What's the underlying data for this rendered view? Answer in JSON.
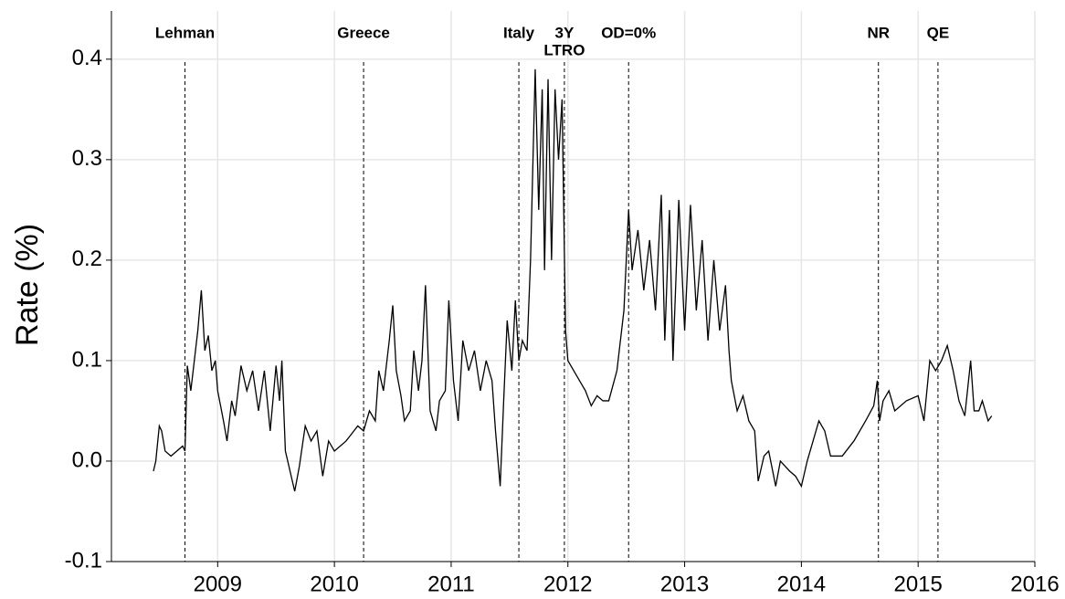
{
  "chart_data": {
    "type": "line",
    "y_label": "Rate (%)",
    "x": [
      2008.45,
      2008.47,
      2008.5,
      2008.52,
      2008.55,
      2008.6,
      2008.65,
      2008.7,
      2008.72,
      2008.74,
      2008.77,
      2008.8,
      2008.83,
      2008.86,
      2008.89,
      2008.92,
      2008.95,
      2008.98,
      2009.0,
      2009.05,
      2009.08,
      2009.12,
      2009.15,
      2009.2,
      2009.25,
      2009.3,
      2009.35,
      2009.4,
      2009.45,
      2009.5,
      2009.53,
      2009.55,
      2009.58,
      2009.62,
      2009.66,
      2009.7,
      2009.75,
      2009.8,
      2009.85,
      2009.9,
      2009.95,
      2010.0,
      2010.1,
      2010.2,
      2010.25,
      2010.3,
      2010.35,
      2010.38,
      2010.42,
      2010.47,
      2010.5,
      2010.53,
      2010.57,
      2010.6,
      2010.65,
      2010.68,
      2010.72,
      2010.75,
      2010.78,
      2010.82,
      2010.87,
      2010.9,
      2010.95,
      2010.98,
      2011.02,
      2011.06,
      2011.1,
      2011.15,
      2011.2,
      2011.25,
      2011.3,
      2011.35,
      2011.38,
      2011.42,
      2011.45,
      2011.48,
      2011.52,
      2011.55,
      2011.58,
      2011.61,
      2011.65,
      2011.68,
      2011.72,
      2011.75,
      2011.78,
      2011.8,
      2011.83,
      2011.86,
      2011.89,
      2011.92,
      2011.95,
      2011.98,
      2012.0,
      2012.05,
      2012.1,
      2012.15,
      2012.2,
      2012.25,
      2012.3,
      2012.35,
      2012.42,
      2012.48,
      2012.52,
      2012.55,
      2012.6,
      2012.65,
      2012.7,
      2012.75,
      2012.8,
      2012.83,
      2012.87,
      2012.9,
      2012.95,
      2013.0,
      2013.05,
      2013.1,
      2013.15,
      2013.2,
      2013.25,
      2013.3,
      2013.35,
      2013.38,
      2013.4,
      2013.45,
      2013.5,
      2013.55,
      2013.6,
      2013.63,
      2013.68,
      2013.72,
      2013.78,
      2013.82,
      2013.9,
      2013.95,
      2014.0,
      2014.05,
      2014.1,
      2014.15,
      2014.2,
      2014.25,
      2014.35,
      2014.45,
      2014.55,
      2014.62,
      2014.65,
      2014.67,
      2014.7,
      2014.75,
      2014.8,
      2014.9,
      2015.0,
      2015.05,
      2015.1,
      2015.15,
      2015.2,
      2015.25,
      2015.3,
      2015.35,
      2015.4,
      2015.45,
      2015.48,
      2015.52,
      2015.55,
      2015.6,
      2015.63
    ],
    "series": [
      {
        "color": "#000000",
        "values": [
          -0.01,
          0.0,
          0.035,
          0.03,
          0.01,
          0.005,
          0.01,
          0.015,
          0.01,
          0.095,
          0.07,
          0.1,
          0.13,
          0.17,
          0.11,
          0.125,
          0.09,
          0.1,
          0.07,
          0.04,
          0.02,
          0.06,
          0.045,
          0.095,
          0.07,
          0.09,
          0.05,
          0.09,
          0.03,
          0.095,
          0.06,
          0.1,
          0.01,
          -0.01,
          -0.03,
          -0.005,
          0.035,
          0.02,
          0.03,
          -0.015,
          0.02,
          0.01,
          0.02,
          0.035,
          0.03,
          0.05,
          0.04,
          0.09,
          0.07,
          0.12,
          0.155,
          0.09,
          0.065,
          0.04,
          0.05,
          0.11,
          0.07,
          0.1,
          0.175,
          0.05,
          0.03,
          0.06,
          0.07,
          0.16,
          0.08,
          0.04,
          0.12,
          0.09,
          0.11,
          0.07,
          0.1,
          0.08,
          0.03,
          -0.025,
          0.06,
          0.14,
          0.09,
          0.16,
          0.1,
          0.12,
          0.11,
          0.2,
          0.39,
          0.25,
          0.37,
          0.19,
          0.38,
          0.2,
          0.37,
          0.3,
          0.36,
          0.13,
          0.1,
          0.09,
          0.08,
          0.07,
          0.055,
          0.065,
          0.06,
          0.06,
          0.09,
          0.15,
          0.25,
          0.19,
          0.23,
          0.17,
          0.22,
          0.15,
          0.265,
          0.12,
          0.25,
          0.1,
          0.26,
          0.13,
          0.255,
          0.15,
          0.22,
          0.12,
          0.2,
          0.13,
          0.175,
          0.11,
          0.08,
          0.05,
          0.065,
          0.04,
          0.03,
          -0.02,
          0.005,
          0.01,
          -0.025,
          0.0,
          -0.01,
          -0.015,
          -0.025,
          0.0,
          0.02,
          0.04,
          0.03,
          0.005,
          0.005,
          0.02,
          0.04,
          0.055,
          0.08,
          0.04,
          0.06,
          0.07,
          0.05,
          0.06,
          0.065,
          0.04,
          0.1,
          0.09,
          0.1,
          0.115,
          0.09,
          0.06,
          0.045,
          0.1,
          0.05,
          0.05,
          0.06,
          0.04,
          0.045
        ]
      }
    ],
    "events": [
      {
        "x": 2008.72,
        "label": [
          "Lehman"
        ]
      },
      {
        "x": 2010.25,
        "label": [
          "Greece"
        ]
      },
      {
        "x": 2011.58,
        "label": [
          "Italy"
        ]
      },
      {
        "x": 2011.97,
        "label": [
          "3Y",
          "LTRO"
        ]
      },
      {
        "x": 2012.52,
        "label": [
          "OD=0%"
        ]
      },
      {
        "x": 2014.66,
        "label": [
          "NR"
        ]
      },
      {
        "x": 2015.17,
        "label": [
          "QE"
        ]
      }
    ],
    "xlim": [
      2008.09,
      2016.0
    ],
    "xticks": [
      2009,
      2010,
      2011,
      2012,
      2013,
      2014,
      2015,
      2016
    ],
    "ylim": [
      -0.1,
      0.448
    ],
    "yticks": [
      -0.1,
      {
        "value": 0,
        "label": "0.0"
      },
      0.1,
      0.2,
      0.3,
      0.4
    ],
    "grid": true
  }
}
